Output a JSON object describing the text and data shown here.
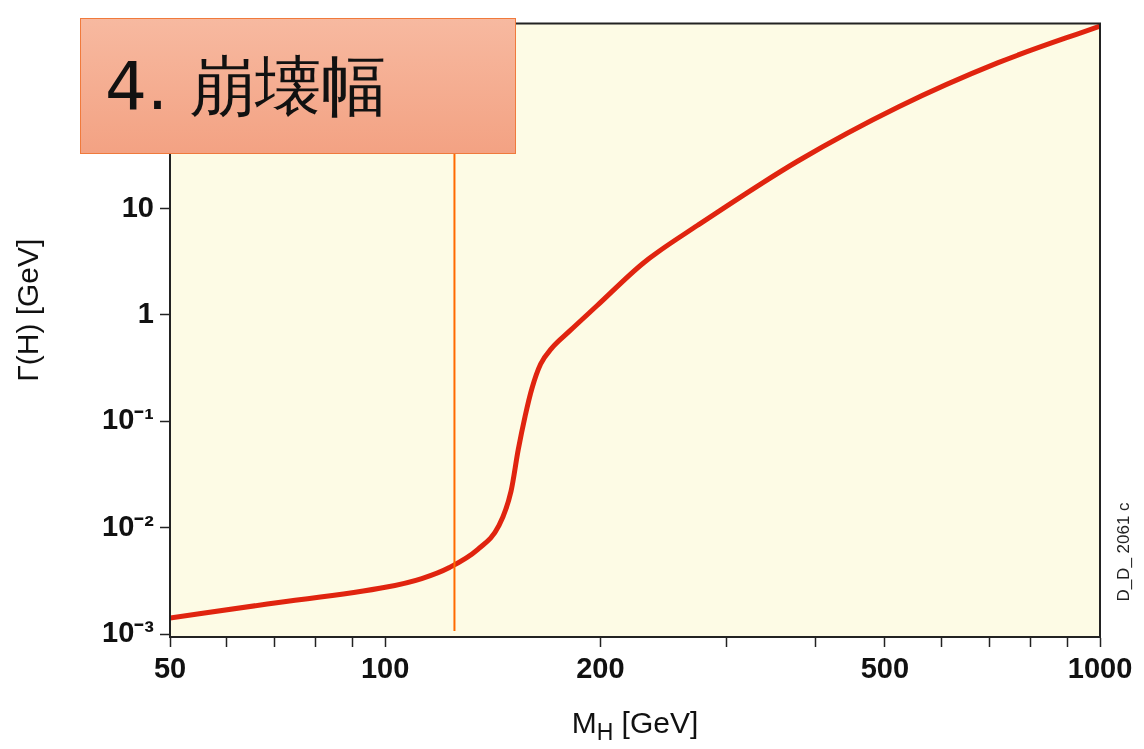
{
  "chart_data": {
    "type": "line",
    "title": "4. 崩壊幅",
    "xlabel": "M$_{H}$ [GeV]",
    "ylabel": "Γ(H) [GeV]",
    "log": "xy",
    "grid": false,
    "legend": false,
    "marker": "none",
    "line_style": "solid",
    "x": [
      50,
      68.4,
      100.5,
      112.5,
      123,
      134.8,
      144.3,
      150,
      153.5,
      157,
      160.5,
      165,
      170.8,
      180.9,
      197.8,
      230,
      274,
      378,
      523,
      719,
      1000
    ],
    "series": [
      {
        "color": "#e0240f",
        "values": [
          0.00142,
          0.00192,
          0.00277,
          0.00333,
          0.00423,
          0.00627,
          0.0105,
          0.0221,
          0.054,
          0.113,
          0.206,
          0.346,
          0.483,
          0.7,
          1.22,
          3.1,
          7.0,
          28,
          90.6,
          234,
          520
        ]
      }
    ],
    "xlim": [
      50,
      1000
    ],
    "ylim": [
      0.00094,
      550
    ],
    "xticks": [
      50,
      {
        "value": 60,
        "label": null
      },
      {
        "value": 70,
        "label": null
      },
      {
        "value": 80,
        "label": null
      },
      {
        "value": 90,
        "label": null
      },
      100,
      200,
      {
        "value": 300,
        "label": null
      },
      {
        "value": 400,
        "label": null
      },
      500,
      {
        "value": 600,
        "label": null
      },
      {
        "value": 700,
        "label": null
      },
      {
        "value": 800,
        "label": null
      },
      {
        "value": 900,
        "label": null
      },
      1000
    ],
    "yticks": [
      {
        "value": 0.001,
        "label": "10⁻³"
      },
      {
        "value": 0.01,
        "label": "10⁻²"
      },
      {
        "value": 0.1,
        "label": "10⁻¹"
      },
      1,
      10,
      {
        "value": 100,
        "label": null
      }
    ],
    "ref_lines": [
      {
        "axis": "x",
        "value": 125,
        "color": "#ff6a00"
      }
    ],
    "annotations": [
      "D_D_ 2061 c"
    ]
  }
}
